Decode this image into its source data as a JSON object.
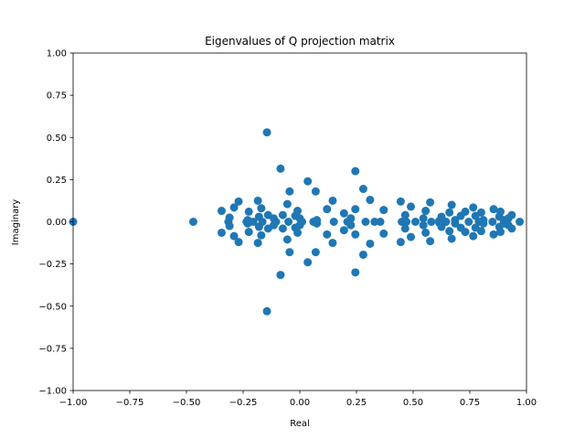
{
  "chart_data": {
    "type": "scatter",
    "title": "Eigenvalues of Q projection matrix",
    "xlabel": "Real",
    "ylabel": "Imaginary",
    "xlim": [
      -1.0,
      1.0
    ],
    "ylim": [
      -1.0,
      1.0
    ],
    "xticks": [
      -1.0,
      -0.75,
      -0.5,
      -0.25,
      0.0,
      0.25,
      0.5,
      0.75,
      1.0
    ],
    "xtick_labels": [
      "−1.00",
      "−0.75",
      "−0.50",
      "−0.25",
      "0.00",
      "0.25",
      "0.50",
      "0.75",
      "1.00"
    ],
    "yticks": [
      -1.0,
      -0.75,
      -0.5,
      -0.25,
      0.0,
      0.25,
      0.5,
      0.75,
      1.0
    ],
    "ytick_labels": [
      "−1.00",
      "−0.75",
      "−0.50",
      "−0.25",
      "0.00",
      "0.25",
      "0.50",
      "0.75",
      "1.00"
    ],
    "grid": false,
    "marker_color": "#1f77b4",
    "points": [
      [
        -1.0,
        0.0
      ],
      [
        -0.47,
        0.0
      ],
      [
        -0.345,
        0.065
      ],
      [
        -0.345,
        -0.065
      ],
      [
        -0.315,
        0.0
      ],
      [
        -0.31,
        0.025
      ],
      [
        -0.31,
        -0.025
      ],
      [
        -0.29,
        0.085
      ],
      [
        -0.29,
        -0.085
      ],
      [
        -0.27,
        0.12
      ],
      [
        -0.27,
        -0.12
      ],
      [
        -0.235,
        0.0
      ],
      [
        -0.23,
        0.01
      ],
      [
        -0.23,
        -0.01
      ],
      [
        -0.205,
        0.0
      ],
      [
        -0.225,
        0.06
      ],
      [
        -0.225,
        -0.06
      ],
      [
        -0.185,
        0.125
      ],
      [
        -0.185,
        -0.125
      ],
      [
        -0.18,
        0.03
      ],
      [
        -0.18,
        -0.03
      ],
      [
        -0.17,
        0.08
      ],
      [
        -0.17,
        -0.08
      ],
      [
        -0.165,
        0.0
      ],
      [
        -0.145,
        0.53
      ],
      [
        -0.145,
        -0.53
      ],
      [
        -0.14,
        0.04
      ],
      [
        -0.14,
        -0.04
      ],
      [
        -0.115,
        0.02
      ],
      [
        -0.115,
        -0.02
      ],
      [
        -0.105,
        0.0
      ],
      [
        -0.085,
        0.315
      ],
      [
        -0.085,
        -0.315
      ],
      [
        -0.075,
        0.04
      ],
      [
        -0.075,
        -0.04
      ],
      [
        -0.055,
        0.105
      ],
      [
        -0.055,
        -0.105
      ],
      [
        -0.05,
        0.0
      ],
      [
        -0.045,
        0.18
      ],
      [
        -0.045,
        -0.18
      ],
      [
        -0.02,
        0.035
      ],
      [
        -0.02,
        -0.035
      ],
      [
        -0.01,
        0.065
      ],
      [
        -0.01,
        -0.065
      ],
      [
        0.0,
        0.02
      ],
      [
        0.0,
        -0.02
      ],
      [
        0.01,
        0.0
      ],
      [
        0.035,
        0.24
      ],
      [
        0.035,
        -0.24
      ],
      [
        0.06,
        0.0
      ],
      [
        0.07,
        0.18
      ],
      [
        0.07,
        -0.18
      ],
      [
        0.075,
        0.01
      ],
      [
        0.075,
        -0.01
      ],
      [
        0.12,
        0.075
      ],
      [
        0.12,
        -0.075
      ],
      [
        0.145,
        0.125
      ],
      [
        0.145,
        -0.125
      ],
      [
        0.15,
        0.0
      ],
      [
        0.195,
        0.05
      ],
      [
        0.195,
        -0.05
      ],
      [
        0.21,
        0.0
      ],
      [
        0.225,
        0.02
      ],
      [
        0.225,
        -0.02
      ],
      [
        0.245,
        0.3
      ],
      [
        0.245,
        -0.3
      ],
      [
        0.245,
        0.075
      ],
      [
        0.245,
        -0.075
      ],
      [
        0.28,
        0.195
      ],
      [
        0.28,
        -0.195
      ],
      [
        0.29,
        0.0
      ],
      [
        0.31,
        0.13
      ],
      [
        0.31,
        -0.13
      ],
      [
        0.33,
        0.0
      ],
      [
        0.355,
        0.0
      ],
      [
        0.37,
        0.07
      ],
      [
        0.37,
        -0.07
      ],
      [
        0.45,
        0.0
      ],
      [
        0.445,
        0.12
      ],
      [
        0.445,
        -0.12
      ],
      [
        0.465,
        0.04
      ],
      [
        0.465,
        -0.04
      ],
      [
        0.47,
        0.0
      ],
      [
        0.49,
        0.09
      ],
      [
        0.49,
        -0.09
      ],
      [
        0.51,
        0.0
      ],
      [
        0.545,
        0.02
      ],
      [
        0.545,
        -0.02
      ],
      [
        0.555,
        0.065
      ],
      [
        0.555,
        -0.065
      ],
      [
        0.575,
        0.115
      ],
      [
        0.575,
        -0.115
      ],
      [
        0.58,
        0.0
      ],
      [
        0.615,
        0.005
      ],
      [
        0.615,
        -0.005
      ],
      [
        0.625,
        0.03
      ],
      [
        0.625,
        -0.03
      ],
      [
        0.645,
        0.0
      ],
      [
        0.66,
        0.055
      ],
      [
        0.66,
        -0.055
      ],
      [
        0.67,
        0.1
      ],
      [
        0.67,
        -0.1
      ],
      [
        0.685,
        0.01
      ],
      [
        0.685,
        -0.01
      ],
      [
        0.71,
        0.035
      ],
      [
        0.71,
        -0.035
      ],
      [
        0.73,
        0.06
      ],
      [
        0.73,
        -0.06
      ],
      [
        0.745,
        0.0
      ],
      [
        0.765,
        0.085
      ],
      [
        0.765,
        -0.085
      ],
      [
        0.775,
        0.035
      ],
      [
        0.775,
        -0.035
      ],
      [
        0.79,
        0.0
      ],
      [
        0.8,
        0.055
      ],
      [
        0.8,
        -0.055
      ],
      [
        0.81,
        0.01
      ],
      [
        0.81,
        -0.01
      ],
      [
        0.85,
        0.0
      ],
      [
        0.855,
        0.075
      ],
      [
        0.855,
        -0.075
      ],
      [
        0.88,
        0.03
      ],
      [
        0.88,
        -0.03
      ],
      [
        0.885,
        0.06
      ],
      [
        0.885,
        -0.06
      ],
      [
        0.9,
        0.01
      ],
      [
        0.9,
        -0.01
      ],
      [
        0.92,
        0.02
      ],
      [
        0.92,
        -0.02
      ],
      [
        0.935,
        0.04
      ],
      [
        0.935,
        -0.04
      ],
      [
        0.97,
        0.0
      ]
    ]
  }
}
